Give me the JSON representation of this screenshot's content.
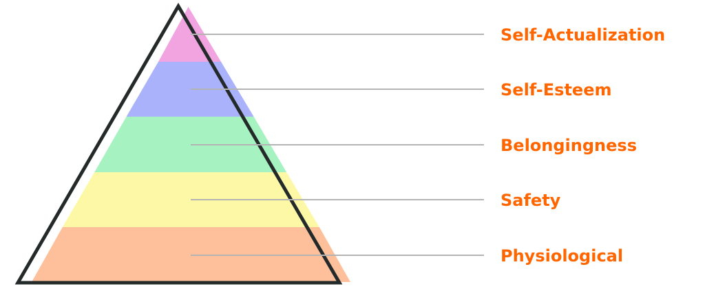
{
  "accent_color": "#ff6600",
  "leader_line_color": "#b3b3b3",
  "outline_color": "#242a2a",
  "levels": [
    {
      "label": "Self-Actualization",
      "color": "#f2a4e0"
    },
    {
      "label": "Self-Esteem",
      "color": "#a9b2fb"
    },
    {
      "label": "Belongingness",
      "color": "#a6f3c1"
    },
    {
      "label": "Safety",
      "color": "#fdf8a5"
    },
    {
      "label": "Physiological",
      "color": "#fec09b"
    }
  ]
}
